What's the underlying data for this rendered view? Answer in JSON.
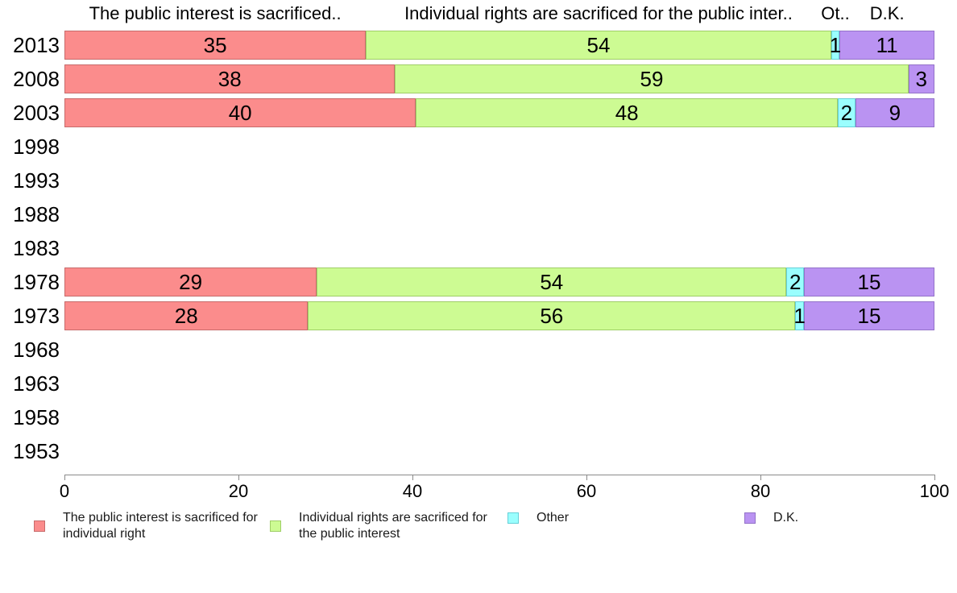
{
  "chart_data": {
    "type": "bar",
    "stacked": true,
    "orientation": "horizontal",
    "title": "",
    "categories": [
      "2013",
      "2008",
      "2003",
      "1998",
      "1993",
      "1988",
      "1983",
      "1978",
      "1973",
      "1968",
      "1963",
      "1958",
      "1953"
    ],
    "series": [
      {
        "name": "The public interest is sacrificed for individual right",
        "column_header": "The public interest is sacrificed..",
        "fill": "#FB8C8C",
        "border": "#C76B6B",
        "values": [
          35,
          38,
          40,
          null,
          null,
          null,
          null,
          29,
          28,
          null,
          null,
          null,
          null
        ]
      },
      {
        "name": "Individual rights are sacrificed for the public interest",
        "column_header": "Individual rights are sacrificed for the public inter..",
        "fill": "#CDFB93",
        "border": "#9FCE67",
        "values": [
          54,
          59,
          48,
          null,
          null,
          null,
          null,
          54,
          56,
          null,
          null,
          null,
          null
        ]
      },
      {
        "name": "Other",
        "column_header": "Ot..",
        "fill": "#9AFEFE",
        "border": "#66D0D8",
        "values": [
          1,
          0,
          2,
          null,
          null,
          null,
          null,
          2,
          1,
          null,
          null,
          null,
          null
        ]
      },
      {
        "name": "D.K.",
        "column_header": "D.K.",
        "fill": "#BA93F2",
        "border": "#9372C9",
        "values": [
          11,
          3,
          9,
          null,
          null,
          null,
          null,
          15,
          15,
          null,
          null,
          null,
          null
        ]
      }
    ],
    "x_axis": {
      "ticks": [
        "0",
        "20",
        "40",
        "60",
        "80",
        "100"
      ],
      "min": 0,
      "max": 100,
      "grid": false
    },
    "legend": {
      "position": "bottom",
      "items": [
        "The public interest is sacrificed for individual right",
        "Individual rights are sacrificed for the public interest",
        "Other",
        "D.K."
      ]
    }
  }
}
